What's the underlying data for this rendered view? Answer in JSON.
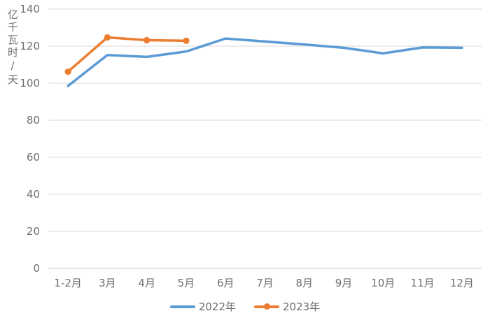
{
  "chart_data": {
    "type": "line",
    "title": "",
    "ylabel": "亿千瓦时/天",
    "xlabel": "",
    "ylim": [
      0,
      140
    ],
    "ytick_step": 20,
    "grid": true,
    "legend_position": "bottom-center",
    "categories": [
      "1-2月",
      "3月",
      "4月",
      "5月",
      "6月",
      "7月",
      "8月",
      "9月",
      "10月",
      "11月",
      "12月"
    ],
    "series": [
      {
        "name": "2022年",
        "color": "#5B9BD5",
        "marker": false,
        "values": [
          98.5,
          115.2,
          114.2,
          117.1,
          124.1,
          122.5,
          120.9,
          119.1,
          116.1,
          119.3,
          119.1
        ]
      },
      {
        "name": "2023年",
        "color": "#ED7D31",
        "marker": true,
        "values": [
          106.2,
          124.7,
          123.2,
          122.9,
          null,
          null,
          null,
          null,
          null,
          null,
          null
        ]
      }
    ],
    "colors": {
      "gridline": "#d9d9d9",
      "axis_line": "#c9c9c9",
      "tick_text": "#6f6f6f"
    }
  }
}
